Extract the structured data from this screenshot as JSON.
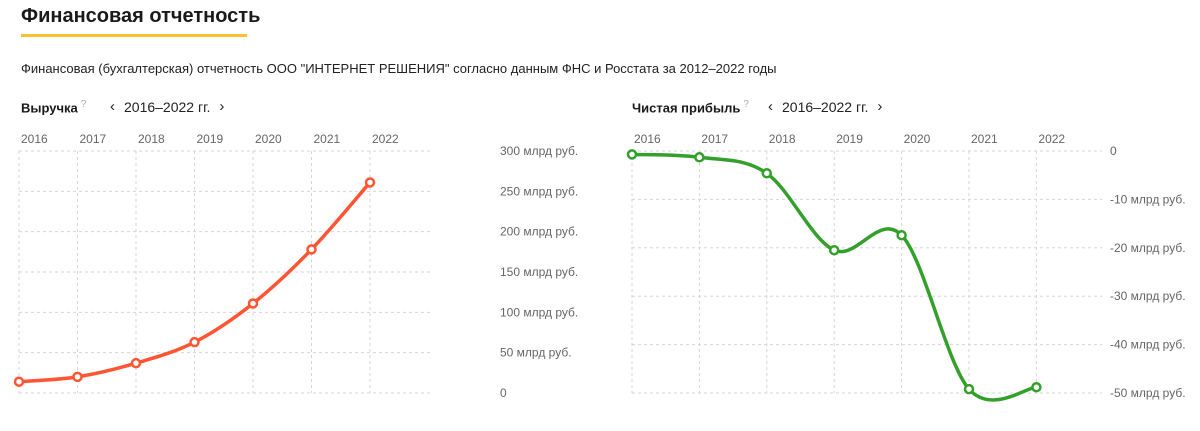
{
  "header": {
    "title": "Финансовая отчетность",
    "subtitle": "Финансовая (бухгалтерская) отчетность ООО \"ИНТЕРНЕТ РЕШЕНИЯ\" согласно данным ФНС и Росстата за 2012–2022 годы"
  },
  "help_mark": "?",
  "period": {
    "label": "2016–2022 гг.",
    "prev": "‹",
    "next": "›"
  },
  "chart_data": [
    {
      "type": "line",
      "title": "Выручка",
      "color": "#ff5533",
      "categories": [
        "2016",
        "2017",
        "2018",
        "2019",
        "2020",
        "2021",
        "2022"
      ],
      "values": [
        14,
        20,
        37,
        63,
        111,
        178,
        261
      ],
      "ylim": [
        0,
        300
      ],
      "yticks": [
        {
          "v": 300,
          "label": "300 млрд руб."
        },
        {
          "v": 250,
          "label": "250 млрд руб."
        },
        {
          "v": 200,
          "label": "200 млрд руб."
        },
        {
          "v": 150,
          "label": "150 млрд руб."
        },
        {
          "v": 100,
          "label": "100 млрд руб."
        },
        {
          "v": 50,
          "label": "50 млрд руб."
        },
        {
          "v": 0,
          "label": "0"
        }
      ],
      "grid": true
    },
    {
      "type": "line",
      "title": "Чистая прибыль",
      "color": "#33a02c",
      "categories": [
        "2016",
        "2017",
        "2018",
        "2019",
        "2020",
        "2021",
        "2022"
      ],
      "values": [
        -0.7,
        -1.3,
        -4.6,
        -20.5,
        -17.4,
        -49.2,
        -48.8
      ],
      "ylim": [
        -50,
        0
      ],
      "yticks": [
        {
          "v": 0,
          "label": "0"
        },
        {
          "v": -10,
          "label": "-10 млрд руб."
        },
        {
          "v": -20,
          "label": "-20 млрд руб."
        },
        {
          "v": -30,
          "label": "-30 млрд руб."
        },
        {
          "v": -40,
          "label": "-40 млрд руб."
        },
        {
          "v": -50,
          "label": "-50 млрд руб."
        }
      ],
      "grid": true
    }
  ]
}
